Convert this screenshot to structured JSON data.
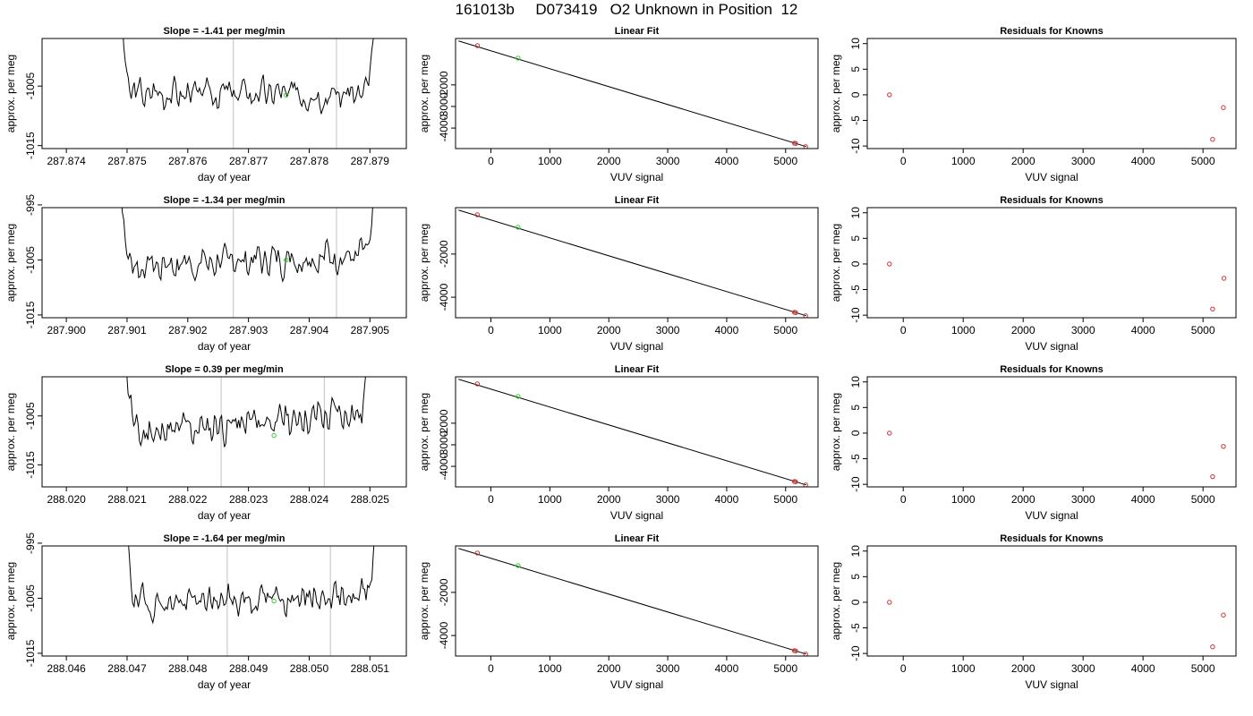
{
  "page_title": "161013b     D073419   O2 Unknown in Position  12",
  "colors": {
    "trace": "#000000",
    "markers_red": "#cc3333",
    "markers_green": "#33cc33",
    "guide_lines": "#cccccc",
    "axis": "#000000"
  },
  "chart_data": [
    {
      "panel": "r1-time",
      "type": "line",
      "title": "Slope =  -1.41  per meg/min",
      "xlabel": "day of year",
      "ylabel": "approx. per meg",
      "xlim": [
        287.8736,
        287.8796
      ],
      "ylim": [
        -1015.5,
        -997
      ],
      "x_ticks": [
        "287.874",
        "287.875",
        "287.876",
        "287.877",
        "287.878",
        "287.879"
      ],
      "y_ticks": [
        "-1015",
        "-1005"
      ],
      "vlines": [
        287.87675,
        287.87845
      ],
      "marker": {
        "x": 287.87762,
        "y": -1006.5,
        "color": "green"
      },
      "trace_start_x": 287.8748,
      "trace_end_x": 287.8792,
      "trace_base": -1006.2,
      "trace_trend": 0.0,
      "trace_noise": 1.1,
      "seed": 3
    },
    {
      "panel": "r1-fit",
      "type": "scatter",
      "title": "Linear Fit",
      "xlabel": "VUV signal",
      "ylabel": "approx. per meg",
      "xlim": [
        -600,
        5550
      ],
      "ylim": [
        -4950,
        150
      ],
      "x_ticks": [
        "0",
        "1000",
        "2000",
        "3000",
        "4000",
        "5000"
      ],
      "y_ticks": [
        "-2000",
        "-3000",
        "-4000"
      ],
      "line": {
        "x": [
          -550,
          5350
        ],
        "y": [
          35,
          -4860
        ]
      },
      "points": [
        {
          "x": -230,
          "y": -180,
          "color": "red"
        },
        {
          "x": 460,
          "y": -760,
          "color": "green"
        },
        {
          "x": 5150,
          "y": -4700,
          "color": "red"
        },
        {
          "x": 5170,
          "y": -4715,
          "color": "red"
        },
        {
          "x": 5340,
          "y": -4860,
          "color": "red"
        }
      ]
    },
    {
      "panel": "r1-resid",
      "type": "scatter",
      "title": "Residuals for Knowns",
      "xlabel": "VUV signal",
      "ylabel": "approx. per meg",
      "xlim": [
        -600,
        5550
      ],
      "ylim": [
        -10.5,
        11
      ],
      "x_ticks": [
        "0",
        "1000",
        "2000",
        "3000",
        "4000",
        "5000"
      ],
      "y_ticks": [
        "-10",
        "-5",
        "0",
        "5",
        "10"
      ],
      "points": [
        {
          "x": -230,
          "y": 0.0,
          "color": "red"
        },
        {
          "x": 5160,
          "y": -8.7,
          "color": "red"
        },
        {
          "x": 5340,
          "y": -2.5,
          "color": "red"
        }
      ]
    },
    {
      "panel": "r2-time",
      "type": "line",
      "title": "Slope =  -1.34  per meg/min",
      "xlabel": "day of year",
      "ylabel": "approx. per meg",
      "xlim": [
        287.8996,
        287.9056
      ],
      "ylim": [
        -1015.5,
        -995.5
      ],
      "x_ticks": [
        "287.900",
        "287.901",
        "287.902",
        "287.903",
        "287.904",
        "287.905"
      ],
      "y_ticks": [
        "-1015",
        "-1005",
        "-995"
      ],
      "vlines": [
        287.90275,
        287.90445
      ],
      "marker": {
        "x": 287.90362,
        "y": -1005.0,
        "color": "green"
      },
      "trace_start_x": 287.9008,
      "trace_end_x": 287.9052,
      "trace_base": -1006.3,
      "trace_trend": 2.4,
      "trace_noise": 1.3,
      "seed": 7
    },
    {
      "panel": "r2-fit",
      "type": "scatter",
      "title": "Linear Fit",
      "xlabel": "VUV signal",
      "ylabel": "approx. per meg",
      "xlim": [
        -600,
        5550
      ],
      "ylim": [
        -4950,
        150
      ],
      "x_ticks": [
        "0",
        "1000",
        "2000",
        "3000",
        "4000",
        "5000"
      ],
      "y_ticks": [
        "-2000",
        "-4000"
      ],
      "line": {
        "x": [
          -550,
          5350
        ],
        "y": [
          35,
          -4860
        ]
      },
      "points": [
        {
          "x": -230,
          "y": -180,
          "color": "red"
        },
        {
          "x": 460,
          "y": -760,
          "color": "green"
        },
        {
          "x": 5150,
          "y": -4700,
          "color": "red"
        },
        {
          "x": 5170,
          "y": -4715,
          "color": "red"
        },
        {
          "x": 5340,
          "y": -4860,
          "color": "red"
        }
      ]
    },
    {
      "panel": "r2-resid",
      "type": "scatter",
      "title": "Residuals for Knowns",
      "xlabel": "VUV signal",
      "ylabel": "approx. per meg",
      "xlim": [
        -600,
        5550
      ],
      "ylim": [
        -10.5,
        11
      ],
      "x_ticks": [
        "0",
        "1000",
        "2000",
        "3000",
        "4000",
        "5000"
      ],
      "y_ticks": [
        "-10",
        "-5",
        "0",
        "5",
        "10"
      ],
      "points": [
        {
          "x": -230,
          "y": 0.0,
          "color": "red"
        },
        {
          "x": 5160,
          "y": -8.8,
          "color": "red"
        },
        {
          "x": 5350,
          "y": -2.8,
          "color": "red"
        }
      ]
    },
    {
      "panel": "r3-time",
      "type": "line",
      "title": "Slope =  0.39  per meg/min",
      "xlabel": "day of year",
      "ylabel": "approx. per meg",
      "xlim": [
        288.0196,
        288.0256
      ],
      "ylim": [
        -1019.5,
        -997
      ],
      "x_ticks": [
        "288.020",
        "288.021",
        "288.022",
        "288.023",
        "288.024",
        "288.025"
      ],
      "y_ticks": [
        "-1015",
        "-1005"
      ],
      "vlines": [
        288.02255,
        288.02425
      ],
      "marker": {
        "x": 288.02342,
        "y": -1009.0,
        "color": "green"
      },
      "trace_start_x": 288.0209,
      "trace_end_x": 288.0251,
      "trace_base": -1009.0,
      "trace_trend": 5.0,
      "trace_noise": 1.6,
      "seed": 11
    },
    {
      "panel": "r3-fit",
      "type": "scatter",
      "title": "Linear Fit",
      "xlabel": "VUV signal",
      "ylabel": "approx. per meg",
      "xlim": [
        -600,
        5550
      ],
      "ylim": [
        -4950,
        150
      ],
      "x_ticks": [
        "0",
        "1000",
        "2000",
        "3000",
        "4000",
        "5000"
      ],
      "y_ticks": [
        "-2000",
        "-3000",
        "-4000"
      ],
      "line": {
        "x": [
          -550,
          5350
        ],
        "y": [
          35,
          -4860
        ]
      },
      "points": [
        {
          "x": -230,
          "y": -180,
          "color": "red"
        },
        {
          "x": 460,
          "y": -760,
          "color": "green"
        },
        {
          "x": 5150,
          "y": -4700,
          "color": "red"
        },
        {
          "x": 5170,
          "y": -4715,
          "color": "red"
        },
        {
          "x": 5340,
          "y": -4860,
          "color": "red"
        }
      ]
    },
    {
      "panel": "r3-resid",
      "type": "scatter",
      "title": "Residuals for Knowns",
      "xlabel": "VUV signal",
      "ylabel": "approx. per meg",
      "xlim": [
        -600,
        5550
      ],
      "ylim": [
        -10.5,
        11
      ],
      "x_ticks": [
        "0",
        "1000",
        "2000",
        "3000",
        "4000",
        "5000"
      ],
      "y_ticks": [
        "-10",
        "-5",
        "0",
        "5",
        "10"
      ],
      "points": [
        {
          "x": -230,
          "y": 0.0,
          "color": "red"
        },
        {
          "x": 5160,
          "y": -8.5,
          "color": "red"
        },
        {
          "x": 5340,
          "y": -2.6,
          "color": "red"
        }
      ]
    },
    {
      "panel": "r4-time",
      "type": "line",
      "title": "Slope =  -1.64  per meg/min",
      "xlabel": "day of year",
      "ylabel": "approx. per meg",
      "xlim": [
        288.0456,
        288.0516
      ],
      "ylim": [
        -1015.5,
        -995.5
      ],
      "x_ticks": [
        "288.046",
        "288.047",
        "288.048",
        "288.049",
        "288.050",
        "288.051"
      ],
      "y_ticks": [
        "-1015",
        "-1005",
        "-995"
      ],
      "vlines": [
        288.04865,
        288.05035
      ],
      "marker": {
        "x": 288.04942,
        "y": -1005.5,
        "color": "green"
      },
      "trace_start_x": 288.0469,
      "trace_end_x": 288.0512,
      "trace_base": -1006.2,
      "trace_trend": 2.0,
      "trace_noise": 1.2,
      "seed": 19
    },
    {
      "panel": "r4-fit",
      "type": "scatter",
      "title": "Linear Fit",
      "xlabel": "VUV signal",
      "ylabel": "approx. per meg",
      "xlim": [
        -600,
        5550
      ],
      "ylim": [
        -4950,
        150
      ],
      "x_ticks": [
        "0",
        "1000",
        "2000",
        "3000",
        "4000",
        "5000"
      ],
      "y_ticks": [
        "-2000",
        "-4000"
      ],
      "line": {
        "x": [
          -550,
          5350
        ],
        "y": [
          35,
          -4860
        ]
      },
      "points": [
        {
          "x": -230,
          "y": -180,
          "color": "red"
        },
        {
          "x": 460,
          "y": -760,
          "color": "green"
        },
        {
          "x": 5150,
          "y": -4700,
          "color": "red"
        },
        {
          "x": 5170,
          "y": -4715,
          "color": "red"
        },
        {
          "x": 5340,
          "y": -4860,
          "color": "red"
        }
      ]
    },
    {
      "panel": "r4-resid",
      "type": "scatter",
      "title": "Residuals for Knowns",
      "xlabel": "VUV signal",
      "ylabel": "approx. per meg",
      "xlim": [
        -600,
        5550
      ],
      "ylim": [
        -10.5,
        11
      ],
      "x_ticks": [
        "0",
        "1000",
        "2000",
        "3000",
        "4000",
        "5000"
      ],
      "y_ticks": [
        "-10",
        "-5",
        "0",
        "5",
        "10"
      ],
      "points": [
        {
          "x": -230,
          "y": 0.0,
          "color": "red"
        },
        {
          "x": 5160,
          "y": -8.7,
          "color": "red"
        },
        {
          "x": 5340,
          "y": -2.5,
          "color": "red"
        }
      ]
    }
  ]
}
